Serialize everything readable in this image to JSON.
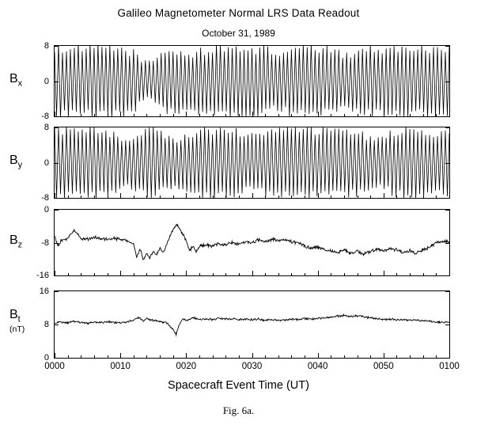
{
  "page": {
    "background": "#ffffff",
    "ink": "#000000"
  },
  "header": {
    "title": "Galileo Magnetometer Normal LRS Data Readout",
    "subtitle": "October 31, 1989"
  },
  "x_axis": {
    "title": "Spacecraft Event Time (UT)",
    "tick_labels": [
      "0000",
      "0010",
      "0020",
      "0030",
      "0040",
      "0050",
      "0100"
    ],
    "range_minutes": [
      0,
      60
    ],
    "major_tick_minutes": 10,
    "minor_tick_minutes": 2
  },
  "caption": "Fig. 6a.",
  "chart_data": [
    {
      "type": "line",
      "waveform": "spin",
      "name": "Bx",
      "label_main": "B",
      "label_sub": "x",
      "ylim": [
        -8,
        8
      ],
      "yticks": {
        "labels": [
          "8",
          "0",
          "-8"
        ],
        "values": [
          8,
          0,
          -8
        ]
      },
      "spin_period_min": 0.6,
      "description": "dense spin-modulated oscillation about 0 nT filling +/-8 nT; amplitude dips near 0014-0016, 0020-0021, 0034 and 0044",
      "envelope": {
        "x": [
          0,
          2,
          4,
          6,
          8,
          10,
          12,
          13,
          14,
          15,
          16,
          17,
          18,
          19,
          20,
          21,
          22,
          24,
          26,
          28,
          30,
          32,
          33,
          34,
          35,
          36,
          38,
          40,
          42,
          43,
          44,
          45,
          46,
          48,
          50,
          52,
          54,
          56,
          58,
          60
        ],
        "amplitude": [
          7.6,
          7.6,
          7.4,
          7.6,
          7.5,
          7.4,
          6.5,
          5.2,
          4.2,
          4.6,
          5.8,
          6.8,
          7.2,
          6.6,
          5.8,
          6.0,
          6.8,
          7.4,
          7.5,
          7.4,
          7.2,
          7.4,
          6.6,
          6.2,
          6.8,
          7.3,
          7.5,
          7.4,
          7.2,
          6.4,
          6.0,
          6.4,
          7.0,
          7.4,
          7.5,
          7.4,
          7.5,
          7.4,
          7.5,
          7.6
        ]
      }
    },
    {
      "type": "line",
      "waveform": "spin",
      "name": "By",
      "label_main": "B",
      "label_sub": "y",
      "ylim": [
        -8,
        8
      ],
      "yticks": {
        "labels": [
          "8",
          "0",
          "-8"
        ],
        "values": [
          8,
          0,
          -8
        ]
      },
      "spin_period_min": 0.6,
      "description": "dense spin-modulated oscillation about 0 nT filling +/-8 nT; amplitude dips near 0010-0012, 0018-0020, 0029-0031 and 0047-0050",
      "envelope": {
        "x": [
          0,
          2,
          4,
          6,
          8,
          9,
          10,
          11,
          12,
          13,
          14,
          15,
          16,
          17,
          18,
          19,
          20,
          21,
          22,
          24,
          26,
          28,
          29,
          30,
          31,
          32,
          34,
          36,
          38,
          40,
          42,
          44,
          46,
          47,
          48,
          49,
          50,
          51,
          52,
          54,
          56,
          57,
          58,
          60
        ],
        "amplitude": [
          7.4,
          7.5,
          7.4,
          7.5,
          7.2,
          6.4,
          5.6,
          5.2,
          5.8,
          6.6,
          7.2,
          7.4,
          7.0,
          6.2,
          5.6,
          5.4,
          6.0,
          6.8,
          7.2,
          7.4,
          7.3,
          7.0,
          6.4,
          6.0,
          6.4,
          7.0,
          7.4,
          7.4,
          7.3,
          7.4,
          7.2,
          7.3,
          7.0,
          6.4,
          5.8,
          5.6,
          6.0,
          6.6,
          7.1,
          7.4,
          7.2,
          6.6,
          7.0,
          7.4
        ]
      }
    },
    {
      "type": "line",
      "name": "Bz",
      "label_main": "B",
      "label_sub": "z",
      "ylim": [
        -16,
        0
      ],
      "yticks": {
        "labels": [
          "0",
          "-8",
          "-16"
        ],
        "values": [
          0,
          -8,
          -16
        ]
      },
      "noise_nT": 0.5,
      "x": [
        0,
        0.5,
        1,
        2,
        3,
        3.5,
        4,
        5,
        6,
        7,
        8,
        9,
        10,
        11,
        12,
        12.5,
        13,
        13.5,
        14,
        14.5,
        15,
        15.5,
        16,
        16.5,
        17,
        17.5,
        18,
        18.5,
        19,
        19.5,
        20,
        20.5,
        21,
        21.5,
        22,
        23,
        24,
        25,
        26,
        27,
        28,
        29,
        30,
        31,
        32,
        33,
        34,
        35,
        36,
        37,
        38,
        39,
        40,
        41,
        42,
        43,
        44,
        45,
        46,
        47,
        48,
        49,
        50,
        51,
        52,
        53,
        54,
        55,
        56,
        57,
        58,
        59,
        60
      ],
      "y": [
        -6.5,
        -9,
        -7.5,
        -7,
        -4.8,
        -6,
        -7,
        -7.2,
        -6.8,
        -7,
        -7.3,
        -7,
        -7.2,
        -7.5,
        -8.5,
        -11.5,
        -9.5,
        -12.3,
        -10.5,
        -11.8,
        -10,
        -11,
        -9.5,
        -10.5,
        -8.5,
        -6.5,
        -5,
        -3.6,
        -4.5,
        -6,
        -7.5,
        -9.8,
        -9,
        -10.2,
        -9,
        -8.5,
        -8.8,
        -8.2,
        -8.6,
        -8,
        -8.4,
        -7.8,
        -8,
        -7.4,
        -7.8,
        -7.2,
        -7.6,
        -7.3,
        -7.8,
        -8,
        -8.8,
        -9.4,
        -9,
        -9.6,
        -10,
        -10.4,
        -9.8,
        -10.6,
        -10,
        -10.8,
        -10.2,
        -9.6,
        -10,
        -9.4,
        -9.8,
        -10.4,
        -10,
        -10.6,
        -9.8,
        -9,
        -8.2,
        -7.6,
        -7.8
      ]
    },
    {
      "type": "line",
      "name": "Bt",
      "label_main": "B",
      "label_sub": "t",
      "unit": "(nT)",
      "ylim": [
        0,
        16
      ],
      "yticks": {
        "labels": [
          "16",
          "8",
          "0"
        ],
        "values": [
          16,
          8,
          0
        ]
      },
      "noise_nT": 0.3,
      "x": [
        0,
        1,
        2,
        3,
        4,
        5,
        6,
        7,
        8,
        9,
        10,
        11,
        12,
        13,
        13.5,
        14,
        15,
        16,
        17,
        18,
        18.5,
        19,
        19.5,
        20,
        21,
        22,
        23,
        24,
        25,
        26,
        27,
        28,
        29,
        30,
        31,
        32,
        33,
        34,
        35,
        36,
        37,
        38,
        39,
        40,
        41,
        42,
        43,
        44,
        45,
        46,
        47,
        48,
        49,
        50,
        51,
        52,
        53,
        54,
        55,
        56,
        57,
        58,
        59,
        60
      ],
      "y": [
        8.3,
        8.6,
        8.4,
        8.8,
        8.5,
        8.3,
        8.6,
        8.4,
        8.7,
        8.5,
        8.4,
        8.6,
        9.2,
        9.6,
        8.8,
        9.4,
        9.0,
        8.8,
        8.4,
        6.8,
        5.6,
        8.2,
        9.4,
        9.0,
        9.6,
        9.2,
        9.4,
        9.2,
        9.5,
        9.3,
        9.4,
        9.2,
        9.3,
        9.1,
        9.3,
        9.0,
        9.2,
        9.0,
        9.1,
        9.3,
        9.2,
        9.4,
        9.3,
        9.5,
        9.6,
        9.8,
        10.0,
        10.2,
        9.9,
        10.1,
        9.8,
        9.6,
        9.4,
        9.2,
        9.3,
        9.1,
        9.2,
        9.0,
        9.1,
        8.9,
        8.8,
        8.6,
        8.5,
        8.6
      ]
    }
  ]
}
